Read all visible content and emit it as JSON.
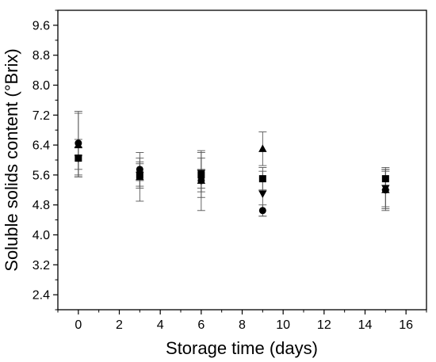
{
  "chart_data": {
    "type": "scatter",
    "title": "",
    "xlabel": "Storage time (days)",
    "ylabel": "Soluble solids content (°Brix)",
    "xlim": [
      -1,
      17
    ],
    "ylim": [
      2,
      10
    ],
    "x_major_ticks": [
      0,
      2,
      4,
      6,
      8,
      10,
      12,
      14,
      16
    ],
    "y_major_ticks": [
      2.4,
      3.2,
      4.0,
      4.8,
      5.6,
      6.4,
      7.2,
      8.0,
      8.8,
      9.6
    ],
    "x_tick_labels": [
      "0",
      "2",
      "4",
      "6",
      "8",
      "10",
      "12",
      "14",
      "16"
    ],
    "y_tick_labels": [
      "2.4",
      "3.2",
      "4.0",
      "4.8",
      "5.6",
      "6.4",
      "7.2",
      "8.0",
      "8.8",
      "9.6"
    ],
    "grid": false,
    "legend": "none",
    "series": [
      {
        "marker": "square",
        "points": [
          {
            "x": 0,
            "y": 6.05,
            "err": 0.5
          },
          {
            "x": 3,
            "y": 5.6,
            "err": 0.35
          },
          {
            "x": 6,
            "y": 5.6,
            "err": 0.6
          },
          {
            "x": 9,
            "y": 5.5,
            "err": 0.3
          },
          {
            "x": 15,
            "y": 5.5,
            "err": 0.3
          }
        ]
      },
      {
        "marker": "circle",
        "points": [
          {
            "x": 0,
            "y": 6.45,
            "err": 0.85
          },
          {
            "x": 3,
            "y": 5.75,
            "err": 0.3
          },
          {
            "x": 6,
            "y": 5.45,
            "err": 0.3
          },
          {
            "x": 9,
            "y": 4.65,
            "err": 0.15
          },
          {
            "x": 15,
            "y": 5.2,
            "err": 0.5
          }
        ]
      },
      {
        "marker": "triangle-up",
        "points": [
          {
            "x": 0,
            "y": 6.4,
            "err": 0.85
          },
          {
            "x": 3,
            "y": 5.55,
            "err": 0.65
          },
          {
            "x": 6,
            "y": 5.45,
            "err": 0.8
          },
          {
            "x": 9,
            "y": 6.3,
            "err": 0.45
          },
          {
            "x": 15,
            "y": 5.2,
            "err": 0.55
          }
        ]
      },
      {
        "marker": "triangle-down",
        "points": [
          {
            "x": 0,
            "y": 6.05,
            "err": 0.3
          },
          {
            "x": 3,
            "y": 5.6,
            "err": 0.3
          },
          {
            "x": 6,
            "y": 5.65,
            "err": 0.4
          },
          {
            "x": 9,
            "y": 5.1,
            "err": 0.6
          },
          {
            "x": 15,
            "y": 5.25,
            "err": 0.5
          }
        ]
      }
    ]
  }
}
